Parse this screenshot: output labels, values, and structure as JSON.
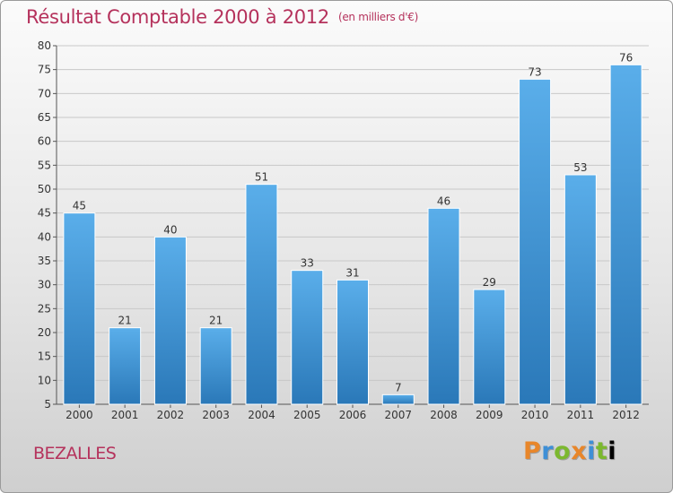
{
  "chart_data": {
    "type": "bar",
    "title": "Résultat Comptable 2000 à 2012",
    "unit": "(en milliers d'€)",
    "categories": [
      "2000",
      "2001",
      "2002",
      "2003",
      "2004",
      "2005",
      "2006",
      "2007",
      "2008",
      "2009",
      "2010",
      "2011",
      "2012"
    ],
    "values": [
      45,
      21,
      40,
      21,
      51,
      33,
      31,
      7,
      46,
      29,
      73,
      53,
      76
    ],
    "ylim": [
      5,
      80
    ],
    "yticks": [
      5,
      10,
      15,
      20,
      25,
      30,
      35,
      40,
      45,
      50,
      55,
      60,
      65,
      70,
      75,
      80
    ],
    "xlabel": "",
    "ylabel": "",
    "grid": true
  },
  "commune": "BEZALLES",
  "brand": {
    "letters": [
      "P",
      "r",
      "o",
      "x",
      "i",
      "t",
      "i"
    ]
  },
  "colors": {
    "title": "#b5325c",
    "bar_top": "#5aaeea",
    "bar_bottom": "#2a78b8",
    "grid": "#c8c8c8"
  }
}
